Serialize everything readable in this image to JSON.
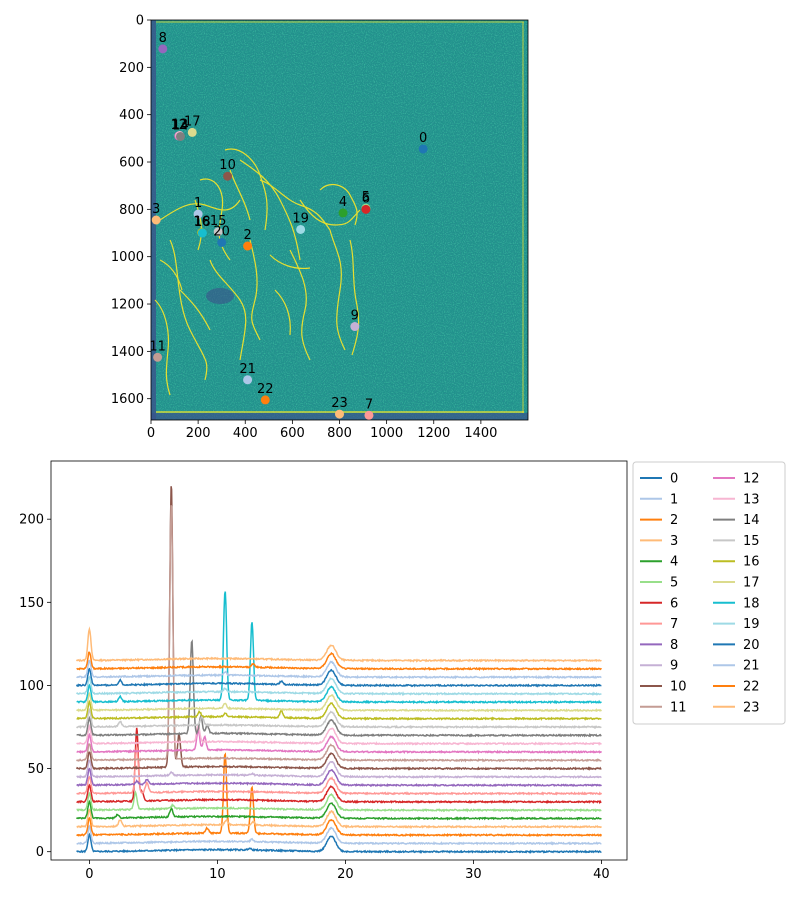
{
  "chart_data": [
    {
      "type": "scatter",
      "title": "",
      "xlabel": "",
      "ylabel": "",
      "xlim": [
        0,
        1600
      ],
      "ylim": [
        1690,
        0
      ],
      "x_ticks": [
        0,
        200,
        400,
        600,
        800,
        1000,
        1200,
        1400
      ],
      "y_ticks": [
        0,
        200,
        400,
        600,
        800,
        1000,
        1200,
        1400,
        1600
      ],
      "background": "image heatmap (viridis colormap) of a scanned drawing",
      "points": [
        {
          "label": "0",
          "x": 1155,
          "y": 545
        },
        {
          "label": "1",
          "x": 200,
          "y": 820
        },
        {
          "label": "2",
          "x": 410,
          "y": 955
        },
        {
          "label": "3",
          "x": 22,
          "y": 845
        },
        {
          "label": "4",
          "x": 815,
          "y": 815
        },
        {
          "label": "5",
          "x": 912,
          "y": 795
        },
        {
          "label": "6",
          "x": 912,
          "y": 800
        },
        {
          "label": "7",
          "x": 925,
          "y": 1670
        },
        {
          "label": "8",
          "x": 50,
          "y": 122
        },
        {
          "label": "9",
          "x": 865,
          "y": 1295
        },
        {
          "label": "10",
          "x": 325,
          "y": 660
        },
        {
          "label": "11",
          "x": 28,
          "y": 1425
        },
        {
          "label": "12",
          "x": 118,
          "y": 490
        },
        {
          "label": "13",
          "x": 122,
          "y": 488
        },
        {
          "label": "14",
          "x": 125,
          "y": 492
        },
        {
          "label": "15",
          "x": 285,
          "y": 895
        },
        {
          "label": "16",
          "x": 215,
          "y": 898
        },
        {
          "label": "17",
          "x": 175,
          "y": 475
        },
        {
          "label": "18",
          "x": 218,
          "y": 900
        },
        {
          "label": "19",
          "x": 635,
          "y": 885
        },
        {
          "label": "20",
          "x": 300,
          "y": 940
        },
        {
          "label": "21",
          "x": 410,
          "y": 1520
        },
        {
          "label": "22",
          "x": 485,
          "y": 1605
        },
        {
          "label": "23",
          "x": 800,
          "y": 1665
        }
      ]
    },
    {
      "type": "line",
      "title": "",
      "xlabel": "",
      "ylabel": "",
      "xlim": [
        -3,
        42
      ],
      "ylim": [
        -5,
        235
      ],
      "x_ticks": [
        0,
        10,
        20,
        30,
        40
      ],
      "y_ticks": [
        0,
        50,
        100,
        150,
        200
      ],
      "legend": {
        "placement": "outside-right",
        "columns": 2
      },
      "offset_step": 5,
      "x_range": [
        -1,
        40
      ],
      "common_peaks": [
        {
          "x": 0,
          "h": 10
        },
        {
          "x": 18.9,
          "h": 9
        }
      ],
      "series": [
        {
          "name": "0",
          "color": "#1f77b4",
          "offset": 0,
          "peaks": [
            {
              "x": 12.5,
              "h": 1
            }
          ]
        },
        {
          "name": "1",
          "color": "#aec7e8",
          "offset": 5,
          "peaks": [
            {
              "x": 12.7,
              "h": 1.5
            }
          ]
        },
        {
          "name": "2",
          "color": "#ff7f0e",
          "offset": 10,
          "peaks": [
            {
              "x": 10.6,
              "h": 48
            },
            {
              "x": 12.7,
              "h": 28
            },
            {
              "x": 9.2,
              "h": 3
            }
          ]
        },
        {
          "name": "3",
          "color": "#ffbb78",
          "offset": 15,
          "peaks": [
            {
              "x": 2.4,
              "h": 4
            },
            {
              "x": 10.7,
              "h": 3
            },
            {
              "x": 12.8,
              "h": 2
            }
          ]
        },
        {
          "name": "4",
          "color": "#2ca02c",
          "offset": 20,
          "peaks": [
            {
              "x": 6.4,
              "h": 5
            },
            {
              "x": 2.2,
              "h": 2
            }
          ]
        },
        {
          "name": "5",
          "color": "#98df8a",
          "offset": 25,
          "peaks": [
            {
              "x": 3.6,
              "h": 10
            },
            {
              "x": 6.5,
              "h": 2
            }
          ]
        },
        {
          "name": "6",
          "color": "#d62728",
          "offset": 30,
          "peaks": [
            {
              "x": 3.7,
              "h": 44
            },
            {
              "x": 4.1,
              "h": 6
            }
          ]
        },
        {
          "name": "7",
          "color": "#ff9896",
          "offset": 35,
          "peaks": [
            {
              "x": 3.7,
              "h": 28
            },
            {
              "x": 4.5,
              "h": 6
            }
          ]
        },
        {
          "name": "8",
          "color": "#9467bd",
          "offset": 40,
          "peaks": [
            {
              "x": 4.5,
              "h": 3
            },
            {
              "x": 3.7,
              "h": 2
            }
          ]
        },
        {
          "name": "9",
          "color": "#c5b0d5",
          "offset": 45,
          "peaks": [
            {
              "x": 6.4,
              "h": 2
            },
            {
              "x": 12.7,
              "h": 1
            }
          ]
        },
        {
          "name": "10",
          "color": "#8c564b",
          "offset": 50,
          "peaks": [
            {
              "x": 6.4,
              "h": 171
            },
            {
              "x": 7.0,
              "h": 20
            }
          ]
        },
        {
          "name": "11",
          "color": "#c49c94",
          "offset": 55,
          "peaks": [
            {
              "x": 6.4,
              "h": 155
            }
          ]
        },
        {
          "name": "12",
          "color": "#e377c2",
          "offset": 60,
          "peaks": [
            {
              "x": 8.5,
              "h": 12
            },
            {
              "x": 9.0,
              "h": 8
            }
          ]
        },
        {
          "name": "13",
          "color": "#f7b6d2",
          "offset": 65,
          "peaks": [
            {
              "x": 8.5,
              "h": 10
            }
          ]
        },
        {
          "name": "14",
          "color": "#7f7f7f",
          "offset": 70,
          "peaks": [
            {
              "x": 8.0,
              "h": 56
            },
            {
              "x": 8.7,
              "h": 10
            },
            {
              "x": 9.2,
              "h": 5
            }
          ]
        },
        {
          "name": "15",
          "color": "#c7c7c7",
          "offset": 75,
          "peaks": [
            {
              "x": 2.4,
              "h": 3
            },
            {
              "x": 8.8,
              "h": 5
            }
          ]
        },
        {
          "name": "16",
          "color": "#bcbd22",
          "offset": 80,
          "peaks": [
            {
              "x": 8.6,
              "h": 3
            },
            {
              "x": 15,
              "h": 4
            },
            {
              "x": 10.6,
              "h": 2
            }
          ]
        },
        {
          "name": "17",
          "color": "#dbdb8d",
          "offset": 85,
          "peaks": [
            {
              "x": 10.6,
              "h": 3
            }
          ]
        },
        {
          "name": "18",
          "color": "#17becf",
          "offset": 90,
          "peaks": [
            {
              "x": 10.6,
              "h": 66
            },
            {
              "x": 12.7,
              "h": 47
            },
            {
              "x": 2.4,
              "h": 3
            }
          ]
        },
        {
          "name": "19",
          "color": "#9edae5",
          "offset": 95,
          "peaks": [
            {
              "x": 10.6,
              "h": 2
            }
          ]
        },
        {
          "name": "20",
          "color": "#1f77b4",
          "offset": 100,
          "peaks": [
            {
              "x": 2.4,
              "h": 3
            },
            {
              "x": 15,
              "h": 2
            }
          ]
        },
        {
          "name": "21",
          "color": "#aec7e8",
          "offset": 105,
          "peaks": [
            {
              "x": 10.6,
              "h": 2
            }
          ]
        },
        {
          "name": "22",
          "color": "#ff7f0e",
          "offset": 110,
          "peaks": [
            {
              "x": 12.8,
              "h": 2
            }
          ]
        },
        {
          "name": "23",
          "color": "#ffbb78",
          "offset": 115,
          "peaks": [
            {
              "x": 0,
              "h": 9
            }
          ]
        }
      ]
    }
  ]
}
